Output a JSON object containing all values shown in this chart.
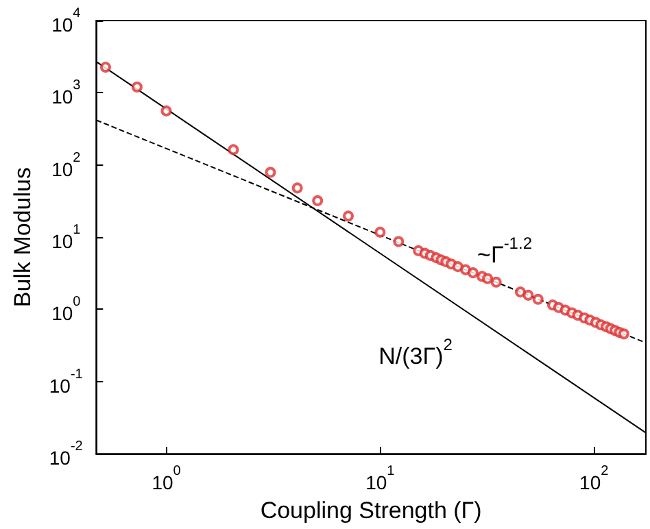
{
  "chart_data": {
    "type": "scatter",
    "xlabel": "Coupling Strength (Γ)",
    "ylabel": "Bulk Modulus",
    "log": "xy",
    "grid": false,
    "xlim": [
      0.47,
      175
    ],
    "xticks": [
      {
        "value": 1,
        "label": "10$^{0}$"
      },
      {
        "value": 10,
        "label": "10$^{1}$"
      },
      {
        "value": 100,
        "label": "10$^{2}$"
      }
    ],
    "ylim": [
      0.01,
      10000
    ],
    "yticks": [
      {
        "value": 0.01,
        "label": "10$^{-2}$"
      },
      {
        "value": 0.1,
        "label": "10$^{-1}$"
      },
      {
        "value": 1,
        "label": "10$^{0}$"
      },
      {
        "value": 10,
        "label": "10$^{1}$"
      },
      {
        "value": 100,
        "label": "10$^{2}$"
      },
      {
        "value": 1000,
        "label": "10$^{3}$"
      },
      {
        "value": 10000,
        "label": "10$^{4}$"
      }
    ],
    "annotations": [
      "~Γ$^{-1.2}$",
      "N/(3Γ)$^{2}$"
    ],
    "series": [
      {
        "color": "#e03030",
        "marker": "circle",
        "x": [
          0.52,
          0.73,
          1.0,
          2.06,
          3.07,
          4.1,
          5.1,
          7.1,
          10,
          12.2,
          15.1,
          16.2,
          17.2,
          18.3,
          19.3,
          20.3,
          21.5,
          23.1,
          25.1,
          27.2,
          30.0,
          31.8,
          34.9,
          45.3,
          49.3,
          54.8,
          64.1,
          68.4,
          73.5,
          78.9,
          84.0,
          90.2,
          95.8,
          101.9,
          107.8,
          114,
          119.7,
          125.5,
          131.5,
          138
        ],
        "values": [
          2260,
          1200,
          560,
          163,
          79,
          48,
          32,
          19.6,
          11.7,
          8.7,
          6.5,
          5.97,
          5.57,
          5.19,
          4.84,
          4.57,
          4.25,
          3.9,
          3.54,
          3.21,
          2.86,
          2.67,
          2.38,
          1.74,
          1.57,
          1.38,
          1.15,
          1.06,
          0.975,
          0.895,
          0.83,
          0.76,
          0.71,
          0.66,
          0.61,
          0.575,
          0.54,
          0.51,
          0.48,
          0.457
        ]
      },
      {
        "type": "line",
        "color": "#000000",
        "marker": "none",
        "line_style": "solid",
        "x": [
          0.47,
          175
        ],
        "values": [
          2703,
          0.0195
        ]
      },
      {
        "type": "line",
        "color": "#000000",
        "marker": "none",
        "line_style": "dashed",
        "x": [
          0.47,
          175
        ],
        "values": [
          418,
          0.344
        ]
      }
    ]
  }
}
